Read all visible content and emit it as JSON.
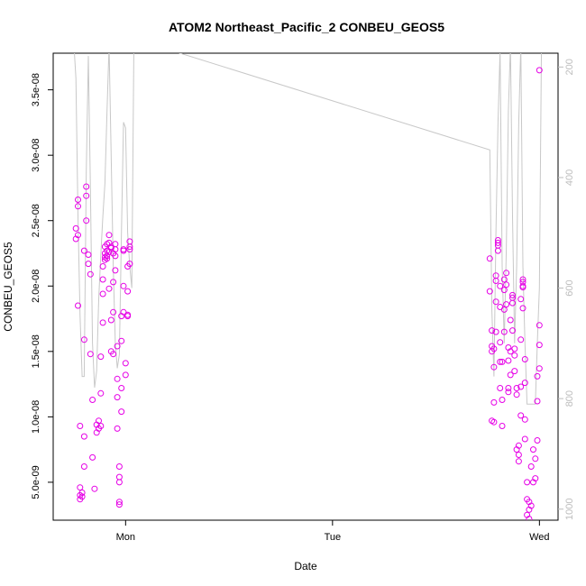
{
  "chart_data": {
    "type": "scatter",
    "title": "ATOM2 Northeast_Pacific_2 CONBEU_GEOS5",
    "xlabel": "Date",
    "ylabel": "CONBEU_GEOS5",
    "x_ticks": [
      {
        "label": "Mon",
        "x": 1.0
      },
      {
        "label": "Tue",
        "x": 2.0
      },
      {
        "label": "Wed",
        "x": 3.0
      }
    ],
    "x_range": [
      0.65,
      3.09
    ],
    "y_range": [
      2.1e-09,
      3.78e-08
    ],
    "y_ticks": [
      {
        "value": 5e-09,
        "label": "5.0e-09"
      },
      {
        "value": 1e-08,
        "label": "1.0e-08"
      },
      {
        "value": 1.5e-08,
        "label": "1.5e-08"
      },
      {
        "value": 2e-08,
        "label": "2.0e-08"
      },
      {
        "value": 2.5e-08,
        "label": "2.5e-08"
      },
      {
        "value": 3e-08,
        "label": "3.0e-08"
      },
      {
        "value": 3.5e-08,
        "label": "3.5e-08"
      }
    ],
    "y2_range": [
      1020,
      175
    ],
    "y2_ticks": [
      {
        "value": 200,
        "label": "200"
      },
      {
        "value": 400,
        "label": "400"
      },
      {
        "value": 600,
        "label": "600"
      },
      {
        "value": 800,
        "label": "800"
      },
      {
        "value": 1000,
        "label": "1000"
      }
    ],
    "series": [
      {
        "kind": "scatter",
        "color": "#e600e6",
        "points": [
          [
            0.76,
            2.44e-08
          ],
          [
            0.76,
            2.36e-08
          ],
          [
            0.77,
            2.66e-08
          ],
          [
            0.77,
            2.61e-08
          ],
          [
            0.77,
            2.39e-08
          ],
          [
            0.77,
            1.85e-08
          ],
          [
            0.78,
            9.3e-09
          ],
          [
            0.78,
            4.6e-09
          ],
          [
            0.78,
            4e-09
          ],
          [
            0.78,
            3.7e-09
          ],
          [
            0.79,
            3.9e-09
          ],
          [
            0.79,
            4.2e-09
          ],
          [
            0.8,
            6.2e-09
          ],
          [
            0.8,
            8.5e-09
          ],
          [
            0.8,
            1.59e-08
          ],
          [
            0.8,
            2.27e-08
          ],
          [
            0.81,
            2.76e-08
          ],
          [
            0.81,
            2.69e-08
          ],
          [
            0.81,
            2.5e-08
          ],
          [
            0.82,
            2.17e-08
          ],
          [
            0.82,
            2.24e-08
          ],
          [
            0.83,
            2.09e-08
          ],
          [
            0.83,
            1.48e-08
          ],
          [
            0.84,
            1.13e-08
          ],
          [
            0.84,
            6.9e-09
          ],
          [
            0.85,
            4.5e-09
          ],
          [
            0.86,
            8.8e-09
          ],
          [
            0.86,
            9.4e-09
          ],
          [
            0.87,
            9.7e-09
          ],
          [
            0.87,
            9.1e-09
          ],
          [
            0.88,
            9.3e-09
          ],
          [
            0.88,
            1.18e-08
          ],
          [
            0.88,
            1.46e-08
          ],
          [
            0.89,
            1.72e-08
          ],
          [
            0.89,
            1.94e-08
          ],
          [
            0.89,
            2.05e-08
          ],
          [
            0.89,
            2.15e-08
          ],
          [
            0.9,
            2.22e-08
          ],
          [
            0.9,
            2.25e-08
          ],
          [
            0.9,
            2.3e-08
          ],
          [
            0.9,
            2.2e-08
          ],
          [
            0.91,
            2.23e-08
          ],
          [
            0.91,
            2.32e-08
          ],
          [
            0.91,
            2.21e-08
          ],
          [
            0.91,
            2.27e-08
          ],
          [
            0.92,
            2.39e-08
          ],
          [
            0.92,
            2.33e-08
          ],
          [
            0.92,
            2.26e-08
          ],
          [
            0.92,
            1.98e-08
          ],
          [
            0.93,
            1.74e-08
          ],
          [
            0.93,
            1.5e-08
          ],
          [
            0.93,
            2.29e-08
          ],
          [
            0.93,
            2.3e-08
          ],
          [
            0.94,
            2.25e-08
          ],
          [
            0.94,
            2.03e-08
          ],
          [
            0.94,
            1.8e-08
          ],
          [
            0.94,
            1.48e-08
          ],
          [
            0.95,
            2.32e-08
          ],
          [
            0.95,
            2.28e-08
          ],
          [
            0.95,
            2.23e-08
          ],
          [
            0.95,
            2.12e-08
          ],
          [
            0.96,
            1.54e-08
          ],
          [
            0.96,
            1.29e-08
          ],
          [
            0.96,
            1.15e-08
          ],
          [
            0.96,
            9.1e-09
          ],
          [
            0.97,
            6.2e-09
          ],
          [
            0.97,
            5.4e-09
          ],
          [
            0.97,
            5e-09
          ],
          [
            0.97,
            3.5e-09
          ],
          [
            0.97,
            3.3e-09
          ],
          [
            0.98,
            1.04e-08
          ],
          [
            0.98,
            1.22e-08
          ],
          [
            0.98,
            1.58e-08
          ],
          [
            0.98,
            1.77e-08
          ],
          [
            0.99,
            2.27e-08
          ],
          [
            0.99,
            2.28e-08
          ],
          [
            0.99,
            2e-08
          ],
          [
            0.99,
            1.8e-08
          ],
          [
            1.0,
            1.41e-08
          ],
          [
            1.0,
            1.32e-08
          ],
          [
            1.01,
            1.77e-08
          ],
          [
            1.01,
            1.78e-08
          ],
          [
            1.01,
            1.96e-08
          ],
          [
            1.01,
            2.15e-08
          ],
          [
            1.02,
            2.17e-08
          ],
          [
            1.02,
            2.28e-08
          ],
          [
            1.02,
            2.34e-08
          ],
          [
            1.02,
            2.3e-08
          ],
          [
            2.76,
            2.21e-08
          ],
          [
            2.76,
            1.96e-08
          ],
          [
            2.77,
            1.66e-08
          ],
          [
            2.77,
            1.54e-08
          ],
          [
            2.77,
            1.5e-08
          ],
          [
            2.77,
            9.7e-09
          ],
          [
            2.78,
            9.6e-09
          ],
          [
            2.78,
            1.11e-08
          ],
          [
            2.78,
            1.38e-08
          ],
          [
            2.78,
            1.52e-08
          ],
          [
            2.79,
            1.65e-08
          ],
          [
            2.79,
            1.88e-08
          ],
          [
            2.79,
            2.04e-08
          ],
          [
            2.79,
            2.08e-08
          ],
          [
            2.8,
            2.35e-08
          ],
          [
            2.8,
            2.31e-08
          ],
          [
            2.8,
            2.33e-08
          ],
          [
            2.8,
            2.27e-08
          ],
          [
            2.81,
            2e-08
          ],
          [
            2.81,
            1.84e-08
          ],
          [
            2.81,
            1.57e-08
          ],
          [
            2.81,
            1.42e-08
          ],
          [
            2.81,
            1.22e-08
          ],
          [
            2.82,
            9.3e-09
          ],
          [
            2.82,
            1.13e-08
          ],
          [
            2.82,
            1.42e-08
          ],
          [
            2.83,
            1.65e-08
          ],
          [
            2.83,
            1.82e-08
          ],
          [
            2.83,
            1.97e-08
          ],
          [
            2.83,
            2.05e-08
          ],
          [
            2.84,
            2.1e-08
          ],
          [
            2.84,
            2.01e-08
          ],
          [
            2.84,
            1.86e-08
          ],
          [
            2.85,
            1.53e-08
          ],
          [
            2.85,
            1.43e-08
          ],
          [
            2.85,
            1.19e-08
          ],
          [
            2.85,
            1.22e-08
          ],
          [
            2.86,
            1.32e-08
          ],
          [
            2.86,
            1.5e-08
          ],
          [
            2.86,
            1.74e-08
          ],
          [
            2.87,
            1.91e-08
          ],
          [
            2.87,
            1.93e-08
          ],
          [
            2.87,
            1.87e-08
          ],
          [
            2.87,
            1.66e-08
          ],
          [
            2.88,
            1.52e-08
          ],
          [
            2.88,
            1.47e-08
          ],
          [
            2.88,
            1.35e-08
          ],
          [
            2.89,
            1.22e-08
          ],
          [
            2.89,
            1.17e-08
          ],
          [
            2.89,
            7.5e-09
          ],
          [
            2.9,
            7.1e-09
          ],
          [
            2.9,
            6.6e-09
          ],
          [
            2.9,
            7.8e-09
          ],
          [
            2.91,
            1.01e-08
          ],
          [
            2.91,
            1.23e-08
          ],
          [
            2.91,
            1.59e-08
          ],
          [
            2.91,
            1.9e-08
          ],
          [
            2.92,
            2e-08
          ],
          [
            2.92,
            2.05e-08
          ],
          [
            2.92,
            2.03e-08
          ],
          [
            2.92,
            1.99e-08
          ],
          [
            2.92,
            1.83e-08
          ],
          [
            2.93,
            1.44e-08
          ],
          [
            2.93,
            1.26e-08
          ],
          [
            2.93,
            9.8e-09
          ],
          [
            2.93,
            8.3e-09
          ],
          [
            2.94,
            5e-09
          ],
          [
            2.94,
            3.7e-09
          ],
          [
            2.94,
            2.5e-09
          ],
          [
            2.95,
            2.2e-09
          ],
          [
            2.95,
            2.9e-09
          ],
          [
            2.95,
            3.5e-09
          ],
          [
            2.96,
            3.2e-09
          ],
          [
            2.96,
            6.2e-09
          ],
          [
            2.97,
            5e-09
          ],
          [
            2.97,
            7.5e-09
          ],
          [
            2.98,
            5.3e-09
          ],
          [
            2.98,
            6.8e-09
          ],
          [
            2.99,
            8.2e-09
          ],
          [
            2.99,
            1.12e-08
          ],
          [
            2.99,
            1.31e-08
          ],
          [
            3.0,
            1.37e-08
          ],
          [
            3.0,
            1.55e-08
          ],
          [
            3.0,
            1.7e-08
          ],
          [
            3.0,
            3.65e-08
          ]
        ]
      },
      {
        "kind": "line",
        "axis": "right",
        "color": "#c8c8c8",
        "points": [
          [
            0.75,
            160
          ],
          [
            0.76,
            220
          ],
          [
            0.77,
            470
          ],
          [
            0.78,
            650
          ],
          [
            0.79,
            760
          ],
          [
            0.8,
            760
          ],
          [
            0.81,
            390
          ],
          [
            0.82,
            180
          ],
          [
            0.83,
            420
          ],
          [
            0.84,
            700
          ],
          [
            0.85,
            780
          ],
          [
            0.86,
            750
          ],
          [
            0.87,
            620
          ],
          [
            0.88,
            540
          ],
          [
            0.89,
            470
          ],
          [
            0.9,
            410
          ],
          [
            0.91,
            280
          ],
          [
            0.92,
            160
          ],
          [
            0.93,
            360
          ],
          [
            0.94,
            560
          ],
          [
            0.95,
            700
          ],
          [
            0.96,
            745
          ],
          [
            0.97,
            720
          ],
          [
            0.98,
            500
          ],
          [
            0.99,
            300
          ],
          [
            1.0,
            310
          ],
          [
            1.01,
            500
          ],
          [
            1.02,
            560
          ],
          [
            1.03,
            600
          ],
          [
            1.04,
            160
          ],
          [
            1.05,
            150
          ],
          [
            2.76,
            350
          ],
          [
            2.77,
            640
          ],
          [
            2.78,
            760
          ],
          [
            2.79,
            500
          ],
          [
            2.8,
            300
          ],
          [
            2.81,
            170
          ],
          [
            2.82,
            560
          ],
          [
            2.83,
            700
          ],
          [
            2.84,
            530
          ],
          [
            2.85,
            280
          ],
          [
            2.86,
            160
          ],
          [
            2.87,
            470
          ],
          [
            2.88,
            700
          ],
          [
            2.89,
            560
          ],
          [
            2.9,
            300
          ],
          [
            2.91,
            160
          ],
          [
            2.92,
            560
          ],
          [
            2.93,
            700
          ],
          [
            2.94,
            810
          ],
          [
            2.95,
            810
          ],
          [
            2.96,
            810
          ],
          [
            2.97,
            810
          ],
          [
            2.98,
            810
          ],
          [
            2.99,
            700
          ],
          [
            3.0,
            600
          ],
          [
            3.01,
            160
          ]
        ]
      }
    ]
  }
}
